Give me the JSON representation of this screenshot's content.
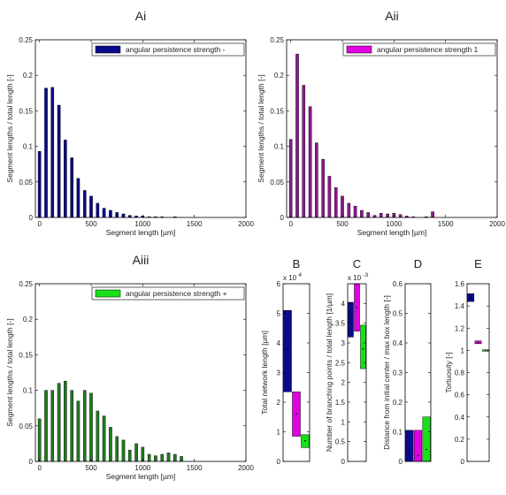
{
  "figure": {
    "colors": {
      "minus": "#0a0a8c",
      "one": "#e000e0",
      "plus": "#18e018"
    }
  },
  "chart_data": [
    {
      "id": "Ai",
      "type": "bar",
      "title": "Ai",
      "xlabel": "Segment length [µm]",
      "ylabel": "Segment lengths / total length [-]",
      "xlim": [
        -40,
        2000
      ],
      "ylim": [
        0,
        0.25
      ],
      "xticks": [
        0,
        500,
        1000,
        1500,
        2000
      ],
      "yticks": [
        0,
        0.05,
        0.1,
        0.15,
        0.2,
        0.25
      ],
      "xtick_labels": [
        "0",
        "500",
        "1000",
        "1500",
        "2000"
      ],
      "ytick_labels": [
        "0",
        "0.05",
        "0.1",
        "0.15",
        "0.2",
        "0.25"
      ],
      "legend": {
        "label": "angular persistence strength -",
        "color": "#0a0a8c",
        "position": "top-right"
      },
      "bar_color": "#0a0a8c",
      "x": [
        0,
        63,
        125,
        188,
        250,
        313,
        375,
        438,
        500,
        563,
        625,
        688,
        750,
        813,
        875,
        938,
        1000,
        1063,
        1125,
        1188,
        1250,
        1313,
        1375
      ],
      "values": [
        0.093,
        0.182,
        0.183,
        0.158,
        0.109,
        0.084,
        0.055,
        0.038,
        0.03,
        0.02,
        0.013,
        0.01,
        0.007,
        0.005,
        0.003,
        0.002,
        0.002,
        0.001,
        0.001,
        0.001,
        0.0,
        0.001,
        0.0
      ]
    },
    {
      "id": "Aii",
      "type": "bar",
      "title": "Aii",
      "xlabel": "Segment length [µm]",
      "ylabel": "Segment lengths / total length [-]",
      "xlim": [
        -40,
        2000
      ],
      "ylim": [
        0,
        0.25
      ],
      "xticks": [
        0,
        500,
        1000,
        1500,
        2000
      ],
      "yticks": [
        0,
        0.05,
        0.1,
        0.15,
        0.2,
        0.25
      ],
      "xtick_labels": [
        "0",
        "500",
        "1000",
        "1500",
        "2000"
      ],
      "ytick_labels": [
        "0",
        "0.05",
        "0.1",
        "0.15",
        "0.2",
        "0.25"
      ],
      "legend": {
        "label": "angular persistence strength 1",
        "color": "#e000e0",
        "position": "top-right"
      },
      "bar_color": "#8a1a8a",
      "x": [
        0,
        63,
        125,
        188,
        250,
        313,
        375,
        438,
        500,
        563,
        625,
        688,
        750,
        813,
        875,
        938,
        1000,
        1063,
        1125,
        1188,
        1250,
        1313,
        1375
      ],
      "values": [
        0.11,
        0.23,
        0.186,
        0.156,
        0.105,
        0.082,
        0.058,
        0.042,
        0.03,
        0.02,
        0.016,
        0.01,
        0.007,
        0.003,
        0.006,
        0.005,
        0.006,
        0.004,
        0.002,
        0.001,
        0.0,
        0.001,
        0.008
      ]
    },
    {
      "id": "Aiii",
      "type": "bar",
      "title": "Aiii",
      "xlabel": "Segment length [µm]",
      "ylabel": "Segment lengths / total length [-]",
      "xlim": [
        -40,
        2000
      ],
      "ylim": [
        0,
        0.25
      ],
      "xticks": [
        0,
        500,
        1000,
        1500,
        2000
      ],
      "yticks": [
        0,
        0.05,
        0.1,
        0.15,
        0.2,
        0.25
      ],
      "xtick_labels": [
        "0",
        "500",
        "1000",
        "1500",
        "2000"
      ],
      "ytick_labels": [
        "0",
        "0.05",
        "0.1",
        "0.15",
        "0.2",
        "0.25"
      ],
      "legend": {
        "label": "angular persistence strength +",
        "color": "#18e018",
        "position": "top-right"
      },
      "bar_color": "#1f7a1f",
      "x": [
        0,
        63,
        125,
        188,
        250,
        313,
        375,
        438,
        500,
        563,
        625,
        688,
        750,
        813,
        875,
        938,
        1000,
        1063,
        1125,
        1188,
        1250,
        1313,
        1375
      ],
      "values": [
        0.06,
        0.1,
        0.1,
        0.11,
        0.113,
        0.1,
        0.085,
        0.1,
        0.096,
        0.071,
        0.064,
        0.048,
        0.035,
        0.03,
        0.016,
        0.025,
        0.02,
        0.01,
        0.008,
        0.01,
        0.012,
        0.01,
        0.007
      ]
    },
    {
      "id": "B",
      "type": "box",
      "title": "B",
      "ylabel": "Total network length [µm]",
      "ylim": [
        0,
        60000
      ],
      "yticks": [
        0,
        10000,
        20000,
        30000,
        40000,
        50000,
        60000
      ],
      "ytick_labels": [
        "0",
        "1",
        "2",
        "3",
        "4",
        "5",
        "6"
      ],
      "y_exponent_label": "x 10",
      "y_exponent_power": "4",
      "boxes": [
        {
          "name": "minus",
          "color": "#0a0a8c",
          "low": 23500,
          "high": 51000,
          "median": 38000
        },
        {
          "name": "one",
          "color": "#e000e0",
          "low": 8500,
          "high": 23500,
          "median": 16000
        },
        {
          "name": "plus",
          "color": "#18e018",
          "low": 4700,
          "high": 9000,
          "median": 7000
        }
      ]
    },
    {
      "id": "C",
      "type": "box",
      "title": "C",
      "ylabel": "Number of branching points / total length [1/µm]",
      "ylim": [
        0,
        0.0045
      ],
      "yticks": [
        0,
        0.0005,
        0.001,
        0.0015,
        0.002,
        0.0025,
        0.003,
        0.0035,
        0.004
      ],
      "ytick_labels": [
        "0",
        "0.5",
        "1",
        "1.5",
        "2",
        "2.5",
        "3",
        "3.5",
        "4"
      ],
      "y_exponent_label": "x 10",
      "y_exponent_power": "-3",
      "boxes": [
        {
          "name": "minus",
          "color": "#0a0a8c",
          "low": 0.00315,
          "high": 0.00403,
          "median": 0.0037
        },
        {
          "name": "one",
          "color": "#e000e0",
          "low": 0.0033,
          "high": 0.0045,
          "median": 0.0039
        },
        {
          "name": "plus",
          "color": "#18e018",
          "low": 0.00235,
          "high": 0.00345,
          "median": 0.00285
        }
      ]
    },
    {
      "id": "D",
      "type": "box",
      "title": "D",
      "ylabel": "Distance from initial center / max box length [-]",
      "ylim": [
        0,
        0.6
      ],
      "yticks": [
        0,
        0.1,
        0.2,
        0.3,
        0.4,
        0.5,
        0.6
      ],
      "ytick_labels": [
        "0",
        "0.1",
        "0.2",
        "0.3",
        "0.4",
        "0.5",
        "0.6"
      ],
      "boxes": [
        {
          "name": "minus",
          "color": "#0a0a8c",
          "low": 0.0,
          "high": 0.105,
          "median": 0.03
        },
        {
          "name": "one",
          "color": "#e000e0",
          "low": 0.0,
          "high": 0.105,
          "median": 0.02
        },
        {
          "name": "plus",
          "color": "#18e018",
          "low": 0.0,
          "high": 0.15,
          "median": 0.04
        }
      ]
    },
    {
      "id": "E",
      "type": "box",
      "title": "E",
      "ylabel": "Tortuosity [-]",
      "ylim": [
        0,
        1.6
      ],
      "yticks": [
        0,
        0.2,
        0.4,
        0.6,
        0.8,
        1.0,
        1.2,
        1.4,
        1.6
      ],
      "ytick_labels": [
        "0",
        "0.2",
        "0.4",
        "0.6",
        "0.8",
        "1",
        "1.2",
        "1.4",
        "1.6"
      ],
      "boxes": [
        {
          "name": "minus",
          "color": "#0a0a8c",
          "low": 1.44,
          "high": 1.51,
          "median": 1.47
        },
        {
          "name": "one",
          "color": "#e000e0",
          "low": 1.06,
          "high": 1.085,
          "median": 1.07
        },
        {
          "name": "plus",
          "color": "#18e018",
          "low": 1.0,
          "high": 1.005,
          "median": 1.003
        }
      ]
    }
  ]
}
